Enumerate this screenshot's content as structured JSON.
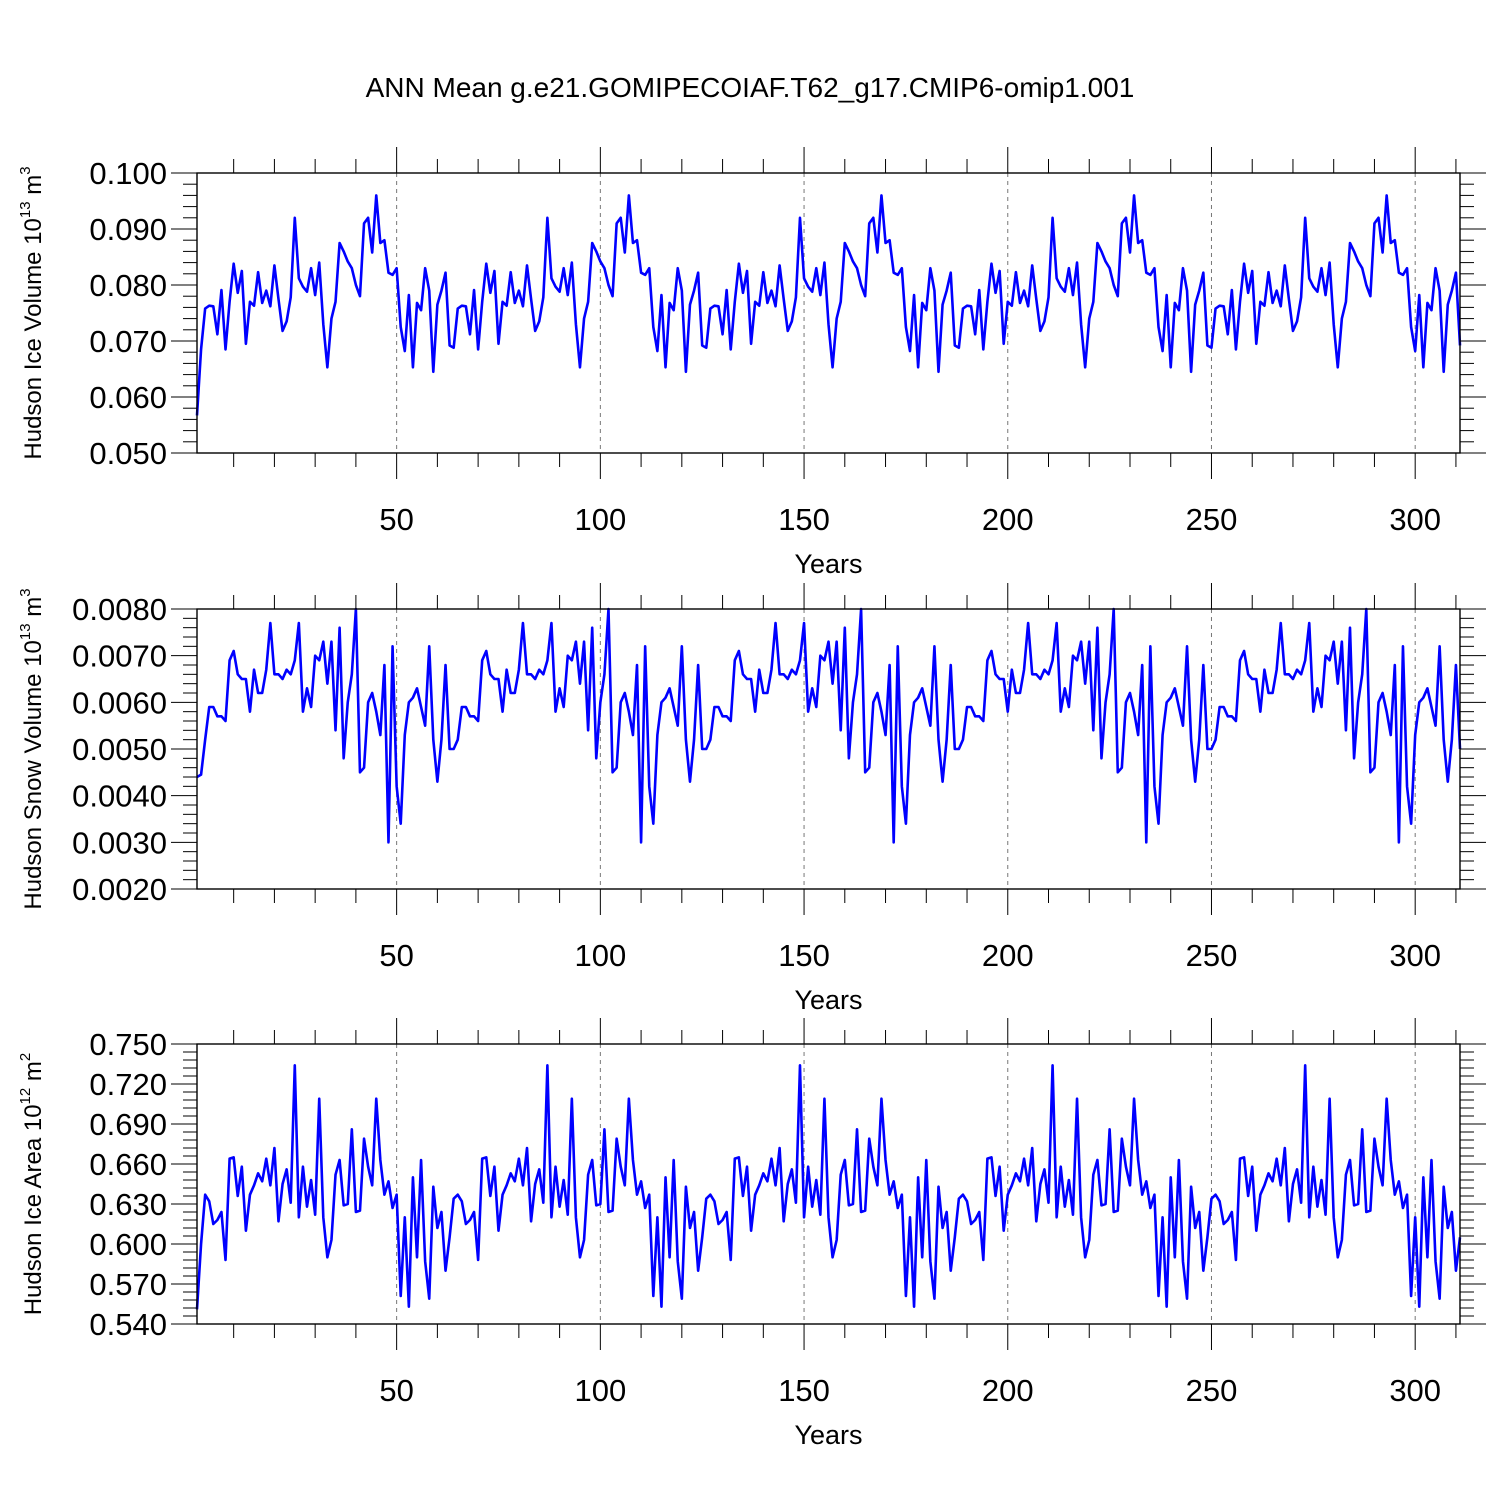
{
  "title": "ANN Mean g.e21.GOMIPECOIAF.T62_g17.CMIP6-omip1.001",
  "line_color": "#0000ff",
  "chart_data": [
    {
      "type": "line",
      "ylabel": "Hudson Ice Volume",
      "ylabel_scale": "10",
      "ylabel_exp": "13",
      "ylabel_unit": "m",
      "ylabel_unit_exp": "3",
      "xlabel": "Years",
      "xlim": [
        1,
        311
      ],
      "ylim": [
        0.05,
        0.1
      ],
      "xticks": [
        50,
        100,
        150,
        200,
        250,
        300
      ],
      "xtick_labels": [
        "50",
        "100",
        "150",
        "200",
        "250",
        "300"
      ],
      "yticks": [
        0.05,
        0.06,
        0.07,
        0.08,
        0.09,
        0.1
      ],
      "ytick_labels": [
        "0.050",
        "0.060",
        "0.070",
        "0.080",
        "0.090",
        "0.100"
      ],
      "grid_x": "dashed",
      "period": 62,
      "series": [
        {
          "name": "Hudson Ice Volume",
          "initial": [
            0.0567,
            0.0685
          ],
          "cycle": [
            0.0758,
            0.0763,
            0.0762,
            0.0712,
            0.0791,
            0.0685,
            0.077,
            0.0838,
            0.0786,
            0.0825,
            0.0695,
            0.077,
            0.0763,
            0.0823,
            0.0768,
            0.079,
            0.0762,
            0.0835,
            0.0775,
            0.0718,
            0.0735,
            0.0778,
            0.092,
            0.0812,
            0.0797,
            0.0788,
            0.083,
            0.0782,
            0.084,
            0.073,
            0.0653,
            0.074,
            0.077,
            0.0875,
            0.086,
            0.0842,
            0.083,
            0.08,
            0.078,
            0.091,
            0.092,
            0.0858,
            0.096,
            0.0875,
            0.088,
            0.0822,
            0.0818,
            0.083,
            0.0725,
            0.0682,
            0.0782,
            0.0653,
            0.0768,
            0.0755,
            0.083,
            0.079,
            0.0645,
            0.0765,
            0.079,
            0.0822,
            0.0692,
            0.0688
          ]
        }
      ]
    },
    {
      "type": "line",
      "ylabel": "Hudson Snow Volume",
      "ylabel_scale": "10",
      "ylabel_exp": "13",
      "ylabel_unit": "m",
      "ylabel_unit_exp": "3",
      "xlabel": "Years",
      "xlim": [
        1,
        311
      ],
      "ylim": [
        0.002,
        0.008
      ],
      "xticks": [
        50,
        100,
        150,
        200,
        250,
        300
      ],
      "xtick_labels": [
        "50",
        "100",
        "150",
        "200",
        "250",
        "300"
      ],
      "yticks": [
        0.002,
        0.003,
        0.004,
        0.005,
        0.006,
        0.007,
        0.008
      ],
      "ytick_labels": [
        "0.0020",
        "0.0030",
        "0.0040",
        "0.0050",
        "0.0060",
        "0.0070",
        "0.0080"
      ],
      "grid_x": "dashed",
      "period": 62,
      "series": [
        {
          "name": "Hudson Snow Volume",
          "initial": [
            0.0044,
            0.00445
          ],
          "cycle": [
            0.0052,
            0.0059,
            0.0059,
            0.0057,
            0.0057,
            0.0056,
            0.0069,
            0.0071,
            0.0066,
            0.0065,
            0.0065,
            0.0058,
            0.0067,
            0.0062,
            0.0062,
            0.0067,
            0.0077,
            0.0066,
            0.0066,
            0.0065,
            0.0067,
            0.0066,
            0.0069,
            0.0077,
            0.0058,
            0.0063,
            0.0059,
            0.007,
            0.0069,
            0.0073,
            0.0064,
            0.0073,
            0.0054,
            0.0076,
            0.0048,
            0.006,
            0.0066,
            0.008,
            0.0045,
            0.0046,
            0.006,
            0.0062,
            0.0058,
            0.0053,
            0.0068,
            0.003,
            0.0072,
            0.0042,
            0.0034,
            0.0053,
            0.006,
            0.0061,
            0.0063,
            0.0059,
            0.0055,
            0.0072,
            0.0052,
            0.0043,
            0.0052,
            0.0068,
            0.005,
            0.005
          ]
        }
      ]
    },
    {
      "type": "line",
      "ylabel": "Hudson Ice Area",
      "ylabel_scale": "10",
      "ylabel_exp": "12",
      "ylabel_unit": "m",
      "ylabel_unit_exp": "2",
      "xlabel": "Years",
      "xlim": [
        1,
        311
      ],
      "ylim": [
        0.54,
        0.75
      ],
      "xticks": [
        50,
        100,
        150,
        200,
        250,
        300
      ],
      "xtick_labels": [
        "50",
        "100",
        "150",
        "200",
        "250",
        "300"
      ],
      "yticks": [
        0.54,
        0.57,
        0.6,
        0.63,
        0.66,
        0.69,
        0.72,
        0.75
      ],
      "ytick_labels": [
        "0.540",
        "0.570",
        "0.600",
        "0.630",
        "0.660",
        "0.690",
        "0.720",
        "0.750"
      ],
      "grid_x": "dashed",
      "period": 62,
      "series": [
        {
          "name": "Hudson Ice Area",
          "initial": [
            0.551,
            0.6
          ],
          "cycle": [
            0.637,
            0.632,
            0.615,
            0.618,
            0.624,
            0.588,
            0.664,
            0.665,
            0.636,
            0.658,
            0.61,
            0.637,
            0.644,
            0.653,
            0.647,
            0.664,
            0.644,
            0.672,
            0.617,
            0.645,
            0.656,
            0.631,
            0.734,
            0.62,
            0.658,
            0.628,
            0.648,
            0.622,
            0.709,
            0.62,
            0.59,
            0.603,
            0.652,
            0.663,
            0.629,
            0.63,
            0.686,
            0.624,
            0.625,
            0.679,
            0.658,
            0.644,
            0.709,
            0.663,
            0.637,
            0.647,
            0.627,
            0.637,
            0.561,
            0.62,
            0.553,
            0.65,
            0.59,
            0.663,
            0.587,
            0.559,
            0.643,
            0.612,
            0.624,
            0.58,
            0.605,
            0.634
          ]
        }
      ]
    }
  ]
}
